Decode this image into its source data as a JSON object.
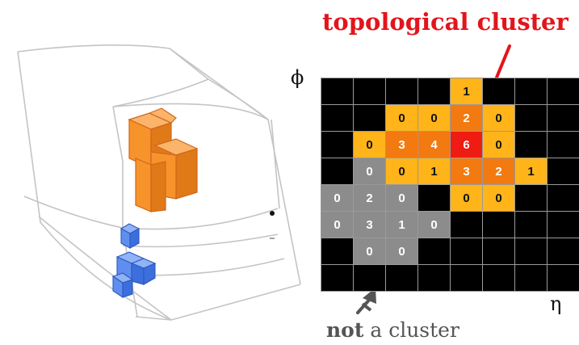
{
  "title": "topological cluster",
  "caption": {
    "bold": "not",
    "rest": " a cluster"
  },
  "axes": {
    "y": "ϕ",
    "x": "η"
  },
  "colors": {
    "background_cell": "#000000",
    "level_orange": "#ffb41a",
    "level_dark_orange": "#f27a10",
    "level_red": "#ee1c12",
    "level_grey": "#8c8c8c",
    "title_red": "#e3141c",
    "arrow_grey": "#555555"
  },
  "grid": {
    "rows": 8,
    "cols": 8,
    "cells": [
      [
        null,
        null,
        null,
        null,
        {
          "v": "1",
          "c": "orange"
        },
        null,
        null,
        null
      ],
      [
        null,
        null,
        {
          "v": "0",
          "c": "orange"
        },
        {
          "v": "0",
          "c": "orange"
        },
        {
          "v": "2",
          "c": "dark"
        },
        {
          "v": "0",
          "c": "orange"
        },
        null,
        null
      ],
      [
        null,
        {
          "v": "0",
          "c": "orange"
        },
        {
          "v": "3",
          "c": "dark"
        },
        {
          "v": "4",
          "c": "dark"
        },
        {
          "v": "6",
          "c": "red"
        },
        {
          "v": "0",
          "c": "orange"
        },
        null,
        null
      ],
      [
        null,
        {
          "v": "0",
          "c": "grey"
        },
        {
          "v": "0",
          "c": "orange"
        },
        {
          "v": "1",
          "c": "orange"
        },
        {
          "v": "3",
          "c": "dark"
        },
        {
          "v": "2",
          "c": "dark"
        },
        {
          "v": "1",
          "c": "orange"
        },
        null
      ],
      [
        {
          "v": "0",
          "c": "grey"
        },
        {
          "v": "2",
          "c": "grey"
        },
        {
          "v": "0",
          "c": "grey"
        },
        null,
        {
          "v": "0",
          "c": "orange"
        },
        {
          "v": "0",
          "c": "orange"
        },
        null,
        null
      ],
      [
        {
          "v": "0",
          "c": "grey"
        },
        {
          "v": "3",
          "c": "grey"
        },
        {
          "v": "1",
          "c": "grey"
        },
        {
          "v": "0",
          "c": "grey"
        },
        null,
        null,
        null,
        null
      ],
      [
        null,
        {
          "v": "0",
          "c": "grey"
        },
        {
          "v": "0",
          "c": "grey"
        },
        null,
        null,
        null,
        null,
        null
      ],
      [
        null,
        null,
        null,
        null,
        null,
        null,
        null,
        null
      ]
    ]
  }
}
